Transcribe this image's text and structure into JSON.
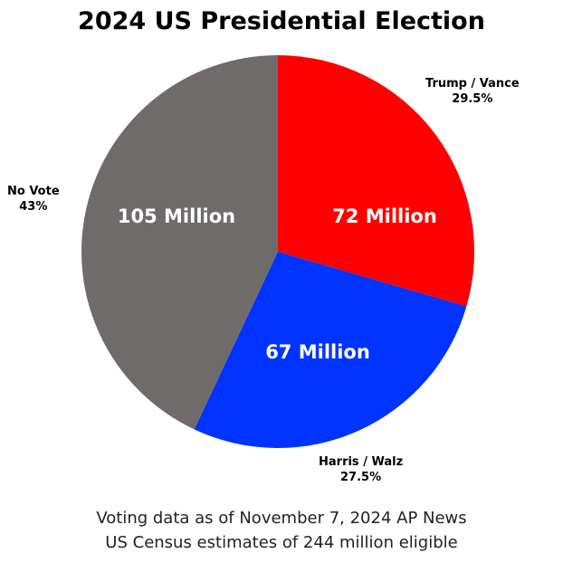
{
  "chart_data": {
    "type": "pie",
    "title": "2024 US Presidential Election",
    "slices": [
      {
        "name": "Trump / Vance",
        "percent": 29.5,
        "pct_label": "29.5%",
        "value_label": "72 Million",
        "value_millions": 72,
        "color": "#ff0000"
      },
      {
        "name": "Harris / Walz",
        "percent": 27.5,
        "pct_label": "27.5%",
        "value_label": "67 Million",
        "value_millions": 67,
        "color": "#0033ff"
      },
      {
        "name": "No Vote",
        "percent": 43,
        "pct_label": "43%",
        "value_label": "105 Million",
        "value_millions": 105,
        "color": "#706b6b"
      }
    ],
    "start_angle": "top",
    "direction": "clockwise"
  },
  "footer": {
    "line1": "Voting data as of November 7, 2024 AP News",
    "line2": "US Census estimates of 244 million eligible"
  }
}
